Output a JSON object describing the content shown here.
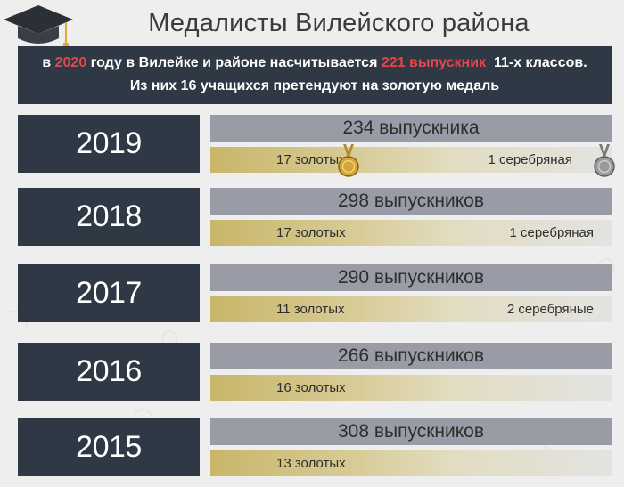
{
  "title": "Медалисты Вилейского района",
  "banner": {
    "line1_pre": "в ",
    "line1_year": "2020",
    "line1_mid": " году в Вилейке и районе насчитывается ",
    "line1_count": "221 выпускник",
    "line1_post": "  11-х классов.",
    "line2": "Из них 16 учащихся претендуют на золотую медаль"
  },
  "rows": [
    {
      "year": "2019",
      "graduates": "234 выпускника",
      "gold": "17 золотых",
      "silver": "1 серебряная"
    },
    {
      "year": "2018",
      "graduates": "298 выпускников",
      "gold": "17 золотых",
      "silver": "1 серебряная"
    },
    {
      "year": "2017",
      "graduates": "290 выпускников",
      "gold": "11 золотых",
      "silver": "2 серебряные"
    },
    {
      "year": "2016",
      "graduates": "266 выпускников",
      "gold": "16 золотых",
      "silver": ""
    },
    {
      "year": "2015",
      "graduates": "308 выпускников",
      "gold": "13 золотых",
      "silver": ""
    }
  ],
  "colors": {
    "dark_panel": "#2f3845",
    "highlight": "#e2484b",
    "graduates_bar": "#999ba6",
    "gold": "#c9b66a"
  },
  "icons": [
    "graduation-cap-icon",
    "gold-medal-icon",
    "silver-medal-icon"
  ]
}
